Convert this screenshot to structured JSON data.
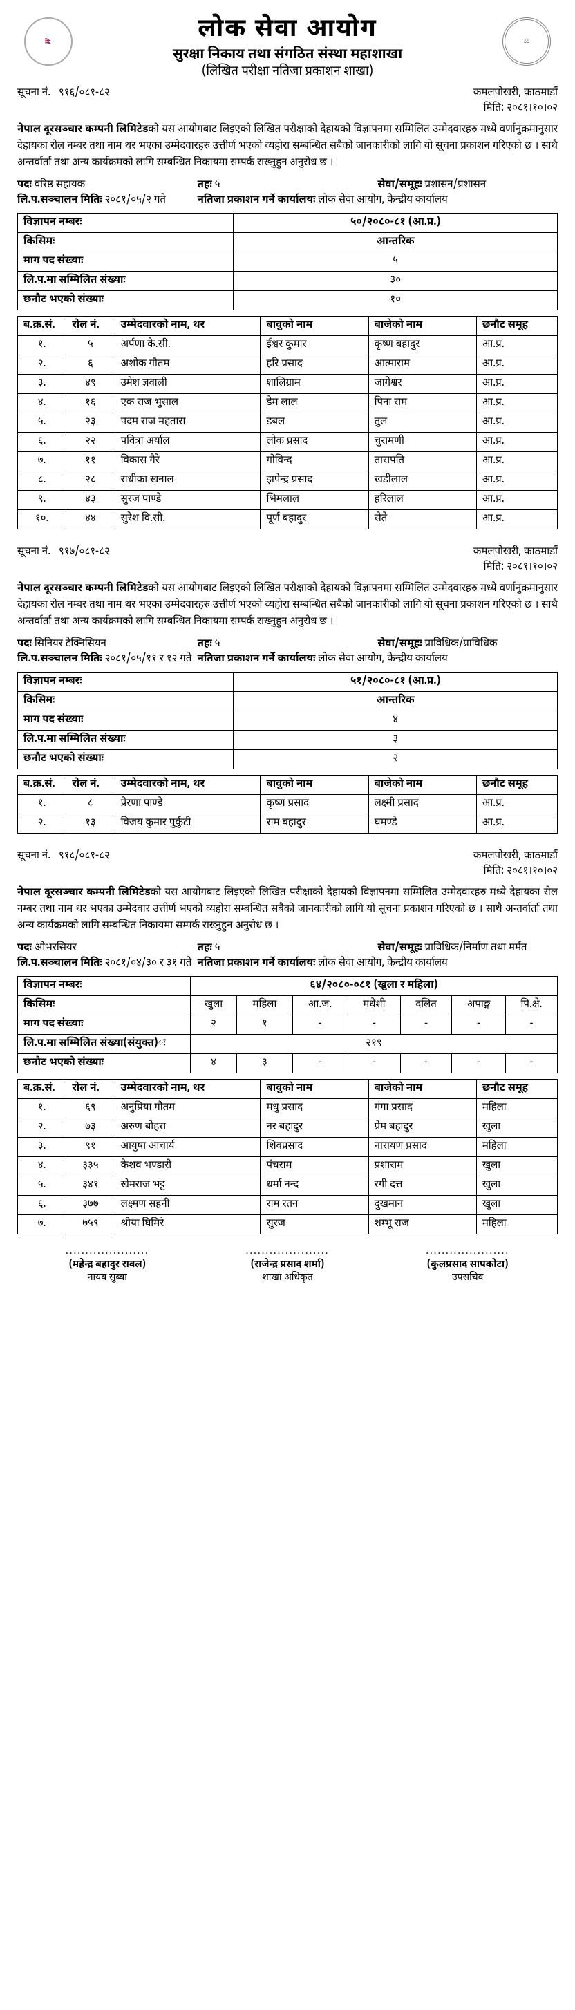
{
  "header": {
    "title": "लोक सेवा आयोग",
    "subtitle": "सुरक्षा निकाय तथा संगठित संस्था महाशाखा",
    "branch": "(लिखित परीक्षा नतिजा प्रकाशन शाखा)",
    "emblem_left": "🇳🇵",
    "emblem_right": "⚖"
  },
  "notices": [
    {
      "notice_no_label": "सूचना नं.",
      "notice_no": "९१६/०८१-८२",
      "location": "कमलपोखरी, काठमाडौं",
      "date_label": "मिति:",
      "date": "२०८१।१०।०२",
      "body_bold": "नेपाल दूरसञ्चार कम्पनी लिमिटेड",
      "body_text": "को यस आयोगबाट लिइएको लिखित परीक्षाको देहायको विज्ञापनमा सम्मिलित उम्मेदवारहरु मध्ये वर्णानुक्रमानुसार देहायका रोल नम्बर तथा नाम थर भएका उम्मेदवारहरु उत्तीर्ण भएको व्यहोरा सम्बन्धित सबैको जानकारीको लागि यो सूचना प्रकाशन गरिएको छ । साथै अन्तर्वार्ता तथा अन्य कार्यक्रमको लागि सम्बन्धित निकायमा सम्पर्क राख्नुहुन अनुरोध छ ।",
      "meta": {
        "post_label": "पदः",
        "post": "वरिष्ठ सहायक",
        "level_label": "तहः",
        "level": "५",
        "service_label": "सेवा/समूहः",
        "service": "प्रशासन/प्रशासन",
        "exam_date_label": "लि.प.सञ्चालन मितिः",
        "exam_date": "२०८१/०५/२ गते",
        "office_label": "नतिजा प्रकाशन गर्ने कार्यालयः",
        "office": "लोक सेवा आयोग, केन्द्रीय कार्यालय"
      },
      "summary": [
        [
          "विज्ञापन नम्बरः",
          "५०/२०८०-८१ (आ.प्र.)"
        ],
        [
          "किसिमः",
          "आन्तरिक"
        ],
        [
          "माग पद संख्याः",
          "५"
        ],
        [
          "लि.प.मा सम्मिलित संख्याः",
          "३०"
        ],
        [
          "छनौट भएको संख्याः",
          "१०"
        ]
      ],
      "result_headers": [
        "ब.क्र.सं.",
        "रोल नं.",
        "उम्मेदवारको नाम, थर",
        "बावुको नाम",
        "बाजेको नाम",
        "छनौट समूह"
      ],
      "results": [
        [
          "१.",
          "५",
          "अर्पणा के.सी.",
          "ईश्वर कुमार",
          "कृष्ण बहादुर",
          "आ.प्र."
        ],
        [
          "२.",
          "६",
          "अशोक गौतम",
          "हरि प्रसाद",
          "आत्माराम",
          "आ.प्र."
        ],
        [
          "३.",
          "४९",
          "उमेश ज्ञवाली",
          "शालिग्राम",
          "जागेश्वर",
          "आ.प्र."
        ],
        [
          "४.",
          "१६",
          "एक राज भुसाल",
          "डेम लाल",
          "पिना राम",
          "आ.प्र."
        ],
        [
          "५.",
          "२३",
          "पदम राज महतारा",
          "डबल",
          "तुल",
          "आ.प्र."
        ],
        [
          "६.",
          "२२",
          "पवित्रा अर्याल",
          "लोक प्रसाद",
          "चुरामणी",
          "आ.प्र."
        ],
        [
          "७.",
          "११",
          "विकास गैरे",
          "गोविन्द",
          "तारापति",
          "आ.प्र."
        ],
        [
          "८.",
          "२८",
          "राधीका खनाल",
          "झपेन्द्र प्रसाद",
          "खडीलाल",
          "आ.प्र."
        ],
        [
          "९.",
          "४३",
          "सुरज पाण्डे",
          "भिमलाल",
          "हरिलाल",
          "आ.प्र."
        ],
        [
          "१०.",
          "४४",
          "सुरेश वि.सी.",
          "पूर्ण बहादुर",
          "सेते",
          "आ.प्र."
        ]
      ]
    },
    {
      "notice_no_label": "सूचना नं.",
      "notice_no": "९१७/०८१-८२",
      "location": "कमलपोखरी, काठमाडौं",
      "date_label": "मिति:",
      "date": "२०८१।१०।०२",
      "body_bold": "नेपाल दूरसञ्चार कम्पनी लिमिटेड",
      "body_text": "को यस आयोगबाट लिइएको लिखित परीक्षाको देहायको विज्ञापनमा सम्मिलित उम्मेदवारहरु मध्ये वर्णानुक्रमानुसार देहायका रोल नम्बर तथा नाम थर भएका उम्मेदवारहरु उत्तीर्ण भएको व्यहोरा सम्बन्धित सबैको जानकारीको लागि यो सूचना प्रकाशन गरिएको छ । साथै अन्तर्वार्ता तथा अन्य कार्यक्रमको लागि सम्बन्धित निकायमा सम्पर्क राख्नुहुन अनुरोध छ ।",
      "meta": {
        "post_label": "पदः",
        "post": "सिनियर टेक्निसियन",
        "level_label": "तहः",
        "level": "५",
        "service_label": "सेवा/समूहः",
        "service": "प्राविधिक/प्राविधिक",
        "exam_date_label": "लि.प.सञ्चालन मितिः",
        "exam_date": "२०८१/०५/११ र १२ गते",
        "office_label": "नतिजा प्रकाशन गर्ने कार्यालयः",
        "office": "लोक सेवा आयोग, केन्द्रीय कार्यालय"
      },
      "summary": [
        [
          "विज्ञापन नम्बरः",
          "५१/२०८०-८१ (आ.प्र.)"
        ],
        [
          "किसिमः",
          "आन्तरिक"
        ],
        [
          "माग पद संख्याः",
          "४"
        ],
        [
          "लि.प.मा सम्मिलित संख्याः",
          "३"
        ],
        [
          "छनौट भएको संख्याः",
          "२"
        ]
      ],
      "result_headers": [
        "ब.क्र.सं.",
        "रोल नं.",
        "उम्मेदवारको नाम, थर",
        "बावुको नाम",
        "बाजेको नाम",
        "छनौट समूह"
      ],
      "results": [
        [
          "१.",
          "८",
          "प्रेरणा पाण्डे",
          "कृष्ण प्रसाद",
          "लक्ष्मी प्रसाद",
          "आ.प्र."
        ],
        [
          "२.",
          "१३",
          "विजय कुमार पुर्कुटी",
          "राम बहादुर",
          "घमण्डे",
          "आ.प्र."
        ]
      ]
    },
    {
      "notice_no_label": "सूचना नं.",
      "notice_no": "९१८/०८१-८२",
      "location": "कमलपोखरी, काठमाडौं",
      "date_label": "मिति:",
      "date": "२०८१।१०।०२",
      "body_bold": "नेपाल दूरसञ्चार कम्पनी लिमिटेड",
      "body_text": "को यस आयोगबाट लिइएको लिखित परीक्षाको देहायको विज्ञापनमा सम्मिलित उम्मेदवारहरु मध्ये देहायका रोल नम्बर तथा नाम थर भएका उम्मेदवार उत्तीर्ण भएको व्यहोरा सम्बन्धित सबैको जानकारीको लागि यो सूचना प्रकाशन गरिएको छ । साथै अन्तर्वार्ता तथा अन्य कार्यक्रमको लागि सम्बन्धित निकायमा सम्पर्क राख्नुहुन अनुरोध छ ।",
      "meta": {
        "post_label": "पदः",
        "post": "ओभरसियर",
        "level_label": "तहः",
        "level": "५",
        "service_label": "सेवा/समूहः",
        "service": "प्राविधिक/निर्माण तथा मर्मत",
        "exam_date_label": "लि.प.सञ्चालन मितिः",
        "exam_date": "२०८१/०४/३० र ३१ गते",
        "office_label": "नतिजा प्रकाशन गर्ने कार्यालयः",
        "office": "लोक सेवा आयोग, केन्द्रीय कार्यालय"
      },
      "group_summary": {
        "header_row": [
          "विज्ञापन नम्बरः",
          "६४/२०८०-०८१ (खुला र महिला)"
        ],
        "cols": [
          "खुला",
          "महिला",
          "आ.ज.",
          "मधेशी",
          "दलित",
          "अपाङ्ग",
          "पि.क्षे."
        ],
        "rows": [
          {
            "label": "किसिमः",
            "cells": [
              "खुला",
              "महिला",
              "आ.ज.",
              "मधेशी",
              "दलित",
              "अपाङ्ग",
              "पि.क्षे."
            ]
          },
          {
            "label": "माग पद संख्याः",
            "cells": [
              "२",
              "१",
              "-",
              "-",
              "-",
              "-",
              "-"
            ]
          },
          {
            "label": "लि.प.मा सम्मिलित संख्या(संयुक्त)ः",
            "cells_merged": "२१९"
          },
          {
            "label": "छनौट भएको संख्याः",
            "cells": [
              "४",
              "३",
              "-",
              "-",
              "-",
              "-",
              "-"
            ]
          }
        ]
      },
      "result_headers": [
        "ब.क्र.सं.",
        "रोल नं.",
        "उम्मेदवारको नाम, थर",
        "बावुको नाम",
        "बाजेको नाम",
        "छनौट समूह"
      ],
      "results": [
        [
          "१.",
          "६९",
          "अनुप्रिया गौतम",
          "मधु प्रसाद",
          "गंगा प्रसाद",
          "महिला"
        ],
        [
          "२.",
          "७३",
          "अरुण बोहरा",
          "नर बहादुर",
          "प्रेम बहादुर",
          "खुला"
        ],
        [
          "३.",
          "९१",
          "आयुषा आचार्य",
          "शिवप्रसाद",
          "नारायण प्रसाद",
          "महिला"
        ],
        [
          "४.",
          "३३५",
          "केशव भण्डारी",
          "पंचराम",
          "प्रशाराम",
          "खुला"
        ],
        [
          "५.",
          "३४१",
          "खेमराज भट्ट",
          "धर्मा नन्द",
          "रगी दत्त",
          "खुला"
        ],
        [
          "६.",
          "३७७",
          "लक्ष्मण सहनी",
          "राम रतन",
          "दुखमान",
          "खुला"
        ],
        [
          "७.",
          "७५९",
          "श्रीया घिमिरे",
          "सुरज",
          "शम्भू राज",
          "महिला"
        ]
      ]
    }
  ],
  "signatures": [
    {
      "name": "(महेन्द्र बहादुर रावल)",
      "post": "नायब सुब्बा",
      "dots": "....................."
    },
    {
      "name": "(राजेन्द्र प्रसाद शर्मा)",
      "post": "शाखा अधिकृत",
      "dots": "....................."
    },
    {
      "name": "(कुलप्रसाद सापकोटा)",
      "post": "उपसचिव",
      "dots": "....................."
    }
  ]
}
